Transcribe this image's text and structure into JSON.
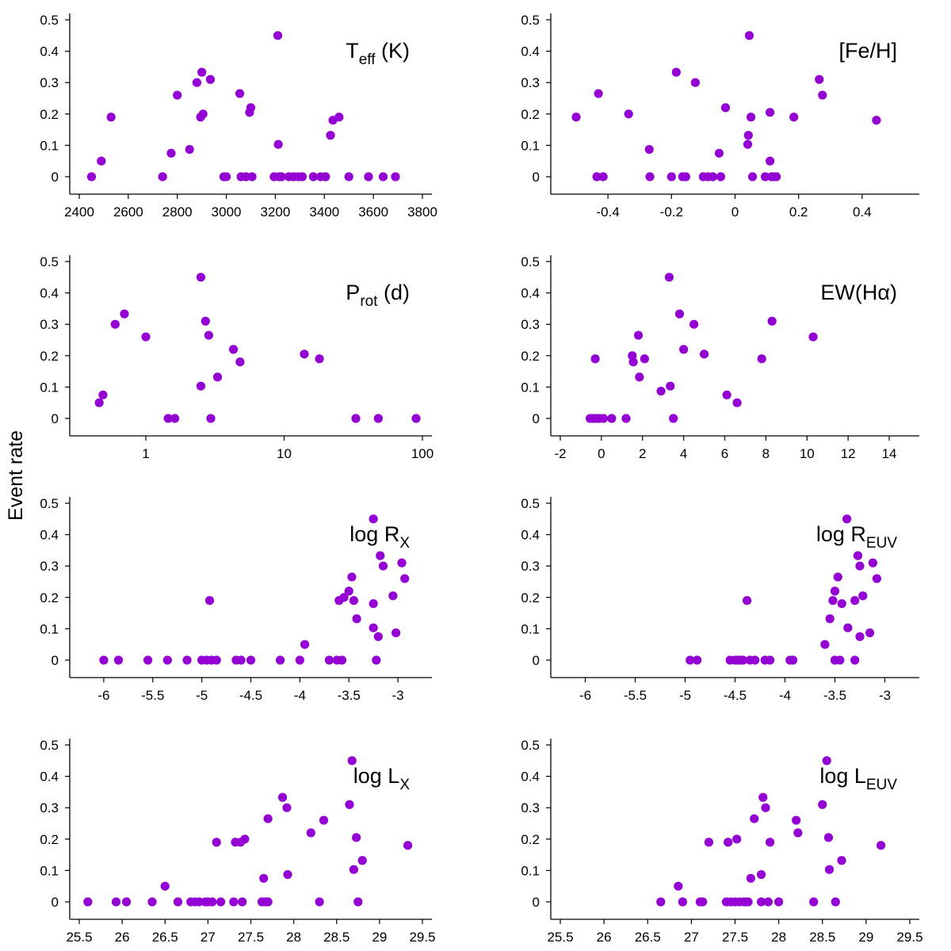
{
  "figure": {
    "ylabel": "Event rate",
    "point_color": "#9400d3"
  },
  "chart_data": [
    {
      "type": "scatter",
      "id": "teff",
      "title": "T_eff (K)",
      "label": {
        "main": "T",
        "sub": "eff",
        "tail": " (K)"
      },
      "xscale": "linear",
      "xlim": [
        2400,
        3800
      ],
      "xticks": [
        2400,
        2600,
        2800,
        3000,
        3200,
        3400,
        3600,
        3800
      ],
      "xtick_labels": [
        "2400",
        "2600",
        "2800",
        "3000",
        "3200",
        "3400",
        "3600",
        "3800"
      ],
      "ylim": [
        0,
        0.5
      ],
      "yticks": [
        0,
        0.1,
        0.2,
        0.3,
        0.4,
        0.5
      ],
      "ytick_labels": [
        "0",
        "0.1",
        "0.2",
        "0.3",
        "0.4",
        "0.5"
      ],
      "points": [
        [
          2450,
          0
        ],
        [
          2490,
          0.05
        ],
        [
          2530,
          0.19
        ],
        [
          2740,
          0
        ],
        [
          2775,
          0.075
        ],
        [
          2800,
          0.26
        ],
        [
          2850,
          0.087
        ],
        [
          2880,
          0.3
        ],
        [
          2895,
          0.19
        ],
        [
          2900,
          0.333
        ],
        [
          2905,
          0.2
        ],
        [
          2935,
          0.31
        ],
        [
          2990,
          0
        ],
        [
          3000,
          0
        ],
        [
          3055,
          0.265
        ],
        [
          3060,
          0
        ],
        [
          3080,
          0
        ],
        [
          3095,
          0.205
        ],
        [
          3100,
          0.22
        ],
        [
          3105,
          0
        ],
        [
          3195,
          0
        ],
        [
          3210,
          0.45
        ],
        [
          3212,
          0.103
        ],
        [
          3215,
          0
        ],
        [
          3225,
          0
        ],
        [
          3255,
          0
        ],
        [
          3275,
          0
        ],
        [
          3295,
          0
        ],
        [
          3310,
          0
        ],
        [
          3355,
          0
        ],
        [
          3385,
          0
        ],
        [
          3405,
          0
        ],
        [
          3425,
          0.132
        ],
        [
          3435,
          0.18
        ],
        [
          3460,
          0.19
        ],
        [
          3500,
          0
        ],
        [
          3580,
          0
        ],
        [
          3640,
          0
        ],
        [
          3690,
          0
        ]
      ]
    },
    {
      "type": "scatter",
      "id": "feh",
      "title": "[Fe/H]",
      "label": {
        "main": "[Fe/H]",
        "sub": "",
        "tail": ""
      },
      "xscale": "linear",
      "xlim": [
        -0.55,
        0.55
      ],
      "xticks": [
        -0.4,
        -0.2,
        0,
        0.2,
        0.4
      ],
      "xtick_labels": [
        "-0.4",
        "-0.2",
        "0",
        "0.2",
        "0.4"
      ],
      "ylim": [
        0,
        0.5
      ],
      "yticks": [
        0,
        0.1,
        0.2,
        0.3,
        0.4,
        0.5
      ],
      "ytick_labels": [
        "0",
        "0.1",
        "0.2",
        "0.3",
        "0.4",
        "0.5"
      ],
      "points": [
        [
          -0.5,
          0.19
        ],
        [
          -0.435,
          0
        ],
        [
          -0.43,
          0.265
        ],
        [
          -0.415,
          0
        ],
        [
          -0.335,
          0.2
        ],
        [
          -0.27,
          0.087
        ],
        [
          -0.268,
          0
        ],
        [
          -0.2,
          0
        ],
        [
          -0.185,
          0.333
        ],
        [
          -0.165,
          0
        ],
        [
          -0.155,
          0
        ],
        [
          -0.125,
          0.3
        ],
        [
          -0.1,
          0
        ],
        [
          -0.085,
          0
        ],
        [
          -0.07,
          0
        ],
        [
          -0.05,
          0.075
        ],
        [
          -0.045,
          0
        ],
        [
          -0.03,
          0.22
        ],
        [
          0.04,
          0.103
        ],
        [
          0.042,
          0.132
        ],
        [
          0.045,
          0.45
        ],
        [
          0.05,
          0.19
        ],
        [
          0.055,
          0
        ],
        [
          0.095,
          0
        ],
        [
          0.11,
          0.205
        ],
        [
          0.11,
          0.05
        ],
        [
          0.115,
          0
        ],
        [
          0.12,
          0
        ],
        [
          0.13,
          0
        ],
        [
          0.185,
          0.19
        ],
        [
          0.265,
          0.31
        ],
        [
          0.275,
          0.26
        ],
        [
          0.445,
          0.18
        ]
      ]
    },
    {
      "type": "scatter",
      "id": "prot",
      "title": "P_rot (d)",
      "label": {
        "main": "P",
        "sub": "rot",
        "tail": " (d)"
      },
      "xscale": "log",
      "xlim": [
        0.33,
        100
      ],
      "xticks": [
        1,
        10,
        100
      ],
      "xtick_labels": [
        "1",
        "10",
        "100"
      ],
      "ylim": [
        0,
        0.5
      ],
      "yticks": [
        0,
        0.1,
        0.2,
        0.3,
        0.4,
        0.5
      ],
      "ytick_labels": [
        "0",
        "0.1",
        "0.2",
        "0.3",
        "0.4",
        "0.5"
      ],
      "points": [
        [
          0.46,
          0.05
        ],
        [
          0.49,
          0.075
        ],
        [
          0.6,
          0.3
        ],
        [
          0.7,
          0.333
        ],
        [
          1.0,
          0.26
        ],
        [
          1.45,
          0
        ],
        [
          1.62,
          0
        ],
        [
          2.5,
          0.45
        ],
        [
          2.5,
          0.103
        ],
        [
          2.7,
          0.31
        ],
        [
          2.85,
          0.265
        ],
        [
          2.95,
          0
        ],
        [
          3.3,
          0.132
        ],
        [
          4.3,
          0.22
        ],
        [
          4.8,
          0.18
        ],
        [
          14,
          0.205
        ],
        [
          18,
          0.19
        ],
        [
          33,
          0
        ],
        [
          48,
          0
        ],
        [
          90,
          0
        ]
      ]
    },
    {
      "type": "scatter",
      "id": "ewha",
      "title": "EW(Hα)",
      "label": {
        "main": "EW(Hα)",
        "sub": "",
        "tail": ""
      },
      "xscale": "linear",
      "xlim": [
        -2,
        15
      ],
      "xticks": [
        -2,
        0,
        2,
        4,
        6,
        8,
        10,
        12,
        14
      ],
      "xtick_labels": [
        "-2",
        "0",
        "2",
        "4",
        "6",
        "8",
        "10",
        "12",
        "14"
      ],
      "ylim": [
        0,
        0.5
      ],
      "yticks": [
        0,
        0.1,
        0.2,
        0.3,
        0.4,
        0.5
      ],
      "ytick_labels": [
        "0",
        "0.1",
        "0.2",
        "0.3",
        "0.4",
        "0.5"
      ],
      "points": [
        [
          -0.55,
          0
        ],
        [
          -0.4,
          0
        ],
        [
          -0.3,
          0.19
        ],
        [
          -0.25,
          0
        ],
        [
          -0.1,
          0
        ],
        [
          0.1,
          0
        ],
        [
          0.5,
          0
        ],
        [
          1.2,
          0
        ],
        [
          1.5,
          0.2
        ],
        [
          1.55,
          0.18
        ],
        [
          1.8,
          0.265
        ],
        [
          1.85,
          0.132
        ],
        [
          2.1,
          0.19
        ],
        [
          2.9,
          0.087
        ],
        [
          3.3,
          0.45
        ],
        [
          3.35,
          0.103
        ],
        [
          3.5,
          0
        ],
        [
          3.8,
          0.333
        ],
        [
          4.0,
          0.22
        ],
        [
          4.5,
          0.3
        ],
        [
          5.0,
          0.205
        ],
        [
          6.1,
          0.075
        ],
        [
          6.6,
          0.05
        ],
        [
          7.8,
          0.19
        ],
        [
          8.3,
          0.31
        ],
        [
          10.3,
          0.26
        ]
      ]
    },
    {
      "type": "scatter",
      "id": "logrx",
      "title": "log R_X",
      "label": {
        "main": "log R",
        "sub": "X",
        "tail": ""
      },
      "xscale": "linear",
      "xlim": [
        -6.25,
        -2.75
      ],
      "xticks": [
        -6,
        -5.5,
        -5,
        -4.5,
        -4,
        -3.5,
        -3
      ],
      "xtick_labels": [
        "-6",
        "-5.5",
        "-5",
        "-4.5",
        "-4",
        "-3.5",
        "-3"
      ],
      "ylim": [
        0,
        0.5
      ],
      "yticks": [
        0,
        0.1,
        0.2,
        0.3,
        0.4,
        0.5
      ],
      "ytick_labels": [
        "0",
        "0.1",
        "0.2",
        "0.3",
        "0.4",
        "0.5"
      ],
      "points": [
        [
          -6.0,
          0
        ],
        [
          -5.85,
          0
        ],
        [
          -5.55,
          0
        ],
        [
          -5.35,
          0
        ],
        [
          -5.15,
          0
        ],
        [
          -5.0,
          0
        ],
        [
          -4.95,
          0
        ],
        [
          -4.92,
          0.19
        ],
        [
          -4.9,
          0
        ],
        [
          -4.85,
          0
        ],
        [
          -4.65,
          0
        ],
        [
          -4.6,
          0
        ],
        [
          -4.5,
          0
        ],
        [
          -4.2,
          0
        ],
        [
          -4.0,
          0
        ],
        [
          -3.95,
          0.05
        ],
        [
          -3.7,
          0
        ],
        [
          -3.62,
          0
        ],
        [
          -3.6,
          0.19
        ],
        [
          -3.57,
          0
        ],
        [
          -3.55,
          0.2
        ],
        [
          -3.5,
          0.22
        ],
        [
          -3.47,
          0.265
        ],
        [
          -3.45,
          0.19
        ],
        [
          -3.42,
          0.132
        ],
        [
          -3.25,
          0.45
        ],
        [
          -3.25,
          0.18
        ],
        [
          -3.25,
          0.103
        ],
        [
          -3.22,
          0
        ],
        [
          -3.2,
          0.075
        ],
        [
          -3.18,
          0.333
        ],
        [
          -3.15,
          0.3
        ],
        [
          -3.05,
          0.205
        ],
        [
          -3.02,
          0.087
        ],
        [
          -2.96,
          0.31
        ],
        [
          -2.93,
          0.26
        ]
      ]
    },
    {
      "type": "scatter",
      "id": "logreuv",
      "title": "log R_EUV",
      "label": {
        "main": "log R",
        "sub": "EUV",
        "tail": ""
      },
      "xscale": "linear",
      "xlim": [
        -6.25,
        -2.75
      ],
      "xticks": [
        -6,
        -5.5,
        -5,
        -4.5,
        -4,
        -3.5,
        -3
      ],
      "xtick_labels": [
        "-6",
        "-5.5",
        "-5",
        "-4.5",
        "-4",
        "-3.5",
        "-3"
      ],
      "ylim": [
        0,
        0.5
      ],
      "yticks": [
        0,
        0.1,
        0.2,
        0.3,
        0.4,
        0.5
      ],
      "ytick_labels": [
        "0",
        "0.1",
        "0.2",
        "0.3",
        "0.4",
        "0.5"
      ],
      "points": [
        [
          -4.95,
          0
        ],
        [
          -4.88,
          0
        ],
        [
          -4.55,
          0
        ],
        [
          -4.5,
          0
        ],
        [
          -4.48,
          0
        ],
        [
          -4.45,
          0
        ],
        [
          -4.42,
          0
        ],
        [
          -4.38,
          0.19
        ],
        [
          -4.35,
          0
        ],
        [
          -4.3,
          0
        ],
        [
          -4.2,
          0
        ],
        [
          -4.15,
          0
        ],
        [
          -3.95,
          0
        ],
        [
          -3.92,
          0
        ],
        [
          -3.6,
          0.05
        ],
        [
          -3.55,
          0.132
        ],
        [
          -3.52,
          0.19
        ],
        [
          -3.5,
          0.22
        ],
        [
          -3.5,
          0
        ],
        [
          -3.47,
          0.265
        ],
        [
          -3.45,
          0
        ],
        [
          -3.43,
          0.18
        ],
        [
          -3.38,
          0.45
        ],
        [
          -3.37,
          0.103
        ],
        [
          -3.3,
          0
        ],
        [
          -3.3,
          0.19
        ],
        [
          -3.27,
          0.333
        ],
        [
          -3.25,
          0.3
        ],
        [
          -3.25,
          0.075
        ],
        [
          -3.22,
          0.205
        ],
        [
          -3.15,
          0.087
        ],
        [
          -3.12,
          0.31
        ],
        [
          -3.08,
          0.26
        ]
      ]
    },
    {
      "type": "scatter",
      "id": "loglx",
      "title": "log L_X",
      "label": {
        "main": "log L",
        "sub": "X",
        "tail": ""
      },
      "xscale": "linear",
      "xlim": [
        25.5,
        29.5
      ],
      "xticks": [
        25.5,
        26,
        26.5,
        27,
        27.5,
        28,
        28.5,
        29,
        29.5
      ],
      "xtick_labels": [
        "25.5",
        "26",
        "26.5",
        "27",
        "27.5",
        "28",
        "28.5",
        "29",
        "29.5"
      ],
      "ylim": [
        0,
        0.5
      ],
      "yticks": [
        0,
        0.1,
        0.2,
        0.3,
        0.4,
        0.5
      ],
      "ytick_labels": [
        "0",
        "0.1",
        "0.2",
        "0.3",
        "0.4",
        "0.5"
      ],
      "points": [
        [
          25.6,
          0
        ],
        [
          25.93,
          0
        ],
        [
          26.05,
          0
        ],
        [
          26.35,
          0
        ],
        [
          26.5,
          0.05
        ],
        [
          26.65,
          0
        ],
        [
          26.8,
          0
        ],
        [
          26.85,
          0
        ],
        [
          26.9,
          0
        ],
        [
          26.97,
          0
        ],
        [
          27.0,
          0
        ],
        [
          27.05,
          0
        ],
        [
          27.1,
          0.19
        ],
        [
          27.15,
          0
        ],
        [
          27.3,
          0
        ],
        [
          27.32,
          0.19
        ],
        [
          27.38,
          0.19
        ],
        [
          27.4,
          0
        ],
        [
          27.43,
          0.2
        ],
        [
          27.63,
          0
        ],
        [
          27.65,
          0.075
        ],
        [
          27.67,
          0
        ],
        [
          27.7,
          0
        ],
        [
          27.7,
          0.265
        ],
        [
          27.87,
          0.333
        ],
        [
          27.92,
          0.3
        ],
        [
          27.93,
          0.087
        ],
        [
          28.2,
          0.22
        ],
        [
          28.3,
          0
        ],
        [
          28.35,
          0.26
        ],
        [
          28.65,
          0.31
        ],
        [
          28.68,
          0.45
        ],
        [
          28.7,
          0.103
        ],
        [
          28.73,
          0.205
        ],
        [
          28.75,
          0
        ],
        [
          28.8,
          0.132
        ],
        [
          29.33,
          0.18
        ]
      ]
    },
    {
      "type": "scatter",
      "id": "logleuv",
      "title": "log L_EUV",
      "label": {
        "main": "log L",
        "sub": "EUV",
        "tail": ""
      },
      "xscale": "linear",
      "xlim": [
        25.5,
        29.5
      ],
      "xticks": [
        25.5,
        26,
        26.5,
        27,
        27.5,
        28,
        28.5,
        29,
        29.5
      ],
      "xtick_labels": [
        "25.5",
        "26",
        "26.5",
        "27",
        "27.5",
        "28",
        "28.5",
        "29",
        "29.5"
      ],
      "ylim": [
        0,
        0.5
      ],
      "yticks": [
        0,
        0.1,
        0.2,
        0.3,
        0.4,
        0.5
      ],
      "ytick_labels": [
        "0",
        "0.1",
        "0.2",
        "0.3",
        "0.4",
        "0.5"
      ],
      "points": [
        [
          26.65,
          0
        ],
        [
          26.85,
          0.05
        ],
        [
          26.9,
          0
        ],
        [
          27.1,
          0
        ],
        [
          27.13,
          0
        ],
        [
          27.2,
          0.19
        ],
        [
          27.4,
          0
        ],
        [
          27.42,
          0.19
        ],
        [
          27.45,
          0
        ],
        [
          27.5,
          0
        ],
        [
          27.52,
          0.2
        ],
        [
          27.55,
          0
        ],
        [
          27.6,
          0
        ],
        [
          27.62,
          0
        ],
        [
          27.65,
          0
        ],
        [
          27.68,
          0.075
        ],
        [
          27.72,
          0.265
        ],
        [
          27.8,
          0
        ],
        [
          27.8,
          0.087
        ],
        [
          27.82,
          0.333
        ],
        [
          27.85,
          0.3
        ],
        [
          27.88,
          0
        ],
        [
          27.9,
          0.19
        ],
        [
          28.0,
          0
        ],
        [
          28.2,
          0.26
        ],
        [
          28.22,
          0.22
        ],
        [
          28.4,
          0
        ],
        [
          28.5,
          0.31
        ],
        [
          28.55,
          0.45
        ],
        [
          28.57,
          0.205
        ],
        [
          28.58,
          0.103
        ],
        [
          28.65,
          0
        ],
        [
          28.72,
          0.132
        ],
        [
          29.17,
          0.18
        ]
      ]
    }
  ]
}
